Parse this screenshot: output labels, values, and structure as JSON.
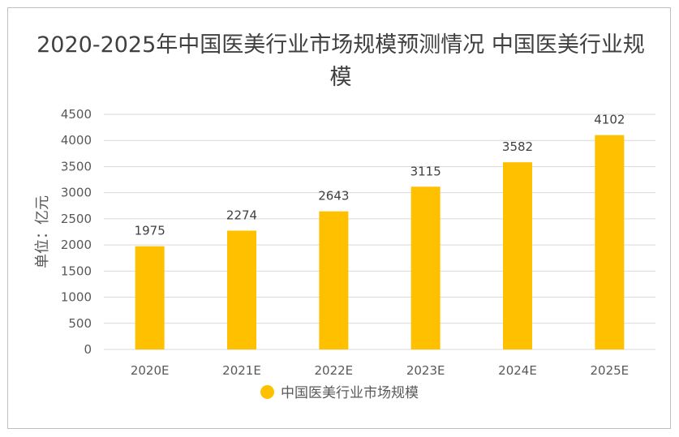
{
  "chart_data": {
    "type": "bar",
    "title": "2020-2025年中国医美行业市场规模预测情况 中国医美行业规模",
    "ylabel": "单位：亿元",
    "xlabel": "",
    "categories": [
      "2020E",
      "2021E",
      "2022E",
      "2023E",
      "2024E",
      "2025E"
    ],
    "series": [
      {
        "name": "中国医美行业市场规模",
        "values": [
          1975,
          2274,
          2643,
          3115,
          3582,
          4102
        ]
      }
    ],
    "ylim": [
      0,
      4500
    ],
    "yticks": [
      0,
      500,
      1000,
      1500,
      2000,
      2500,
      3000,
      3500,
      4000,
      4500
    ],
    "grid": true,
    "legend_position": "bottom",
    "colors": {
      "bar": "#FFC000",
      "grid": "#d9d9d9"
    }
  }
}
